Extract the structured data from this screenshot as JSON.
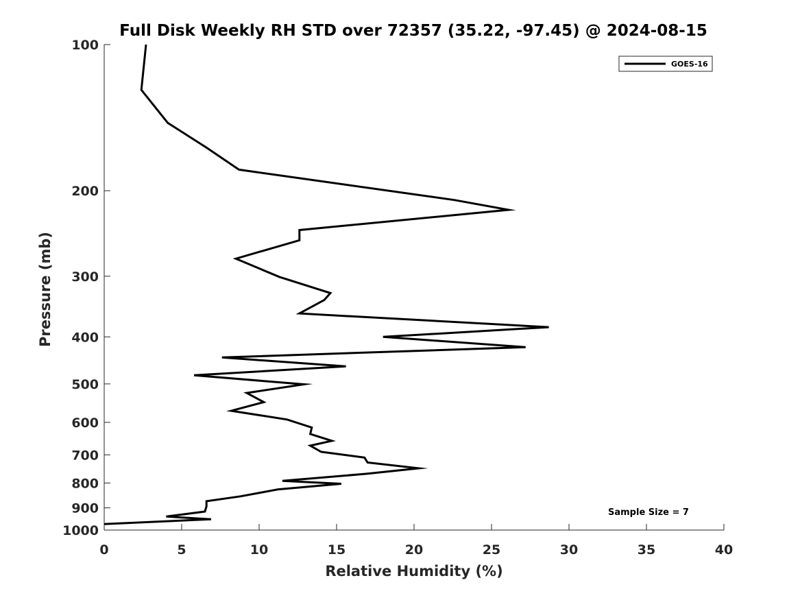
{
  "chart_data": {
    "type": "line",
    "title": "Full Disk Weekly RH STD over 72357 (35.22, -97.45) @ 2024-08-15",
    "xlabel": "Relative Humidity (%)",
    "ylabel": "Pressure (mb)",
    "xlim": [
      0,
      40
    ],
    "ylim": [
      100,
      1000
    ],
    "yscale": "log",
    "y_reversed": true,
    "grid": false,
    "x_ticks": [
      "0",
      "5",
      "10",
      "15",
      "20",
      "25",
      "30",
      "35",
      "40"
    ],
    "y_ticks": [
      "100",
      "200",
      "300",
      "400",
      "500",
      "600",
      "700",
      "800",
      "900",
      "1000"
    ],
    "legend": {
      "position": "top-right",
      "entries": [
        "GOES-16"
      ]
    },
    "annotation": "Sample Size = 7",
    "series": [
      {
        "name": "GOES-16",
        "color": "#000000",
        "points": [
          [
            2.7,
            100
          ],
          [
            2.4,
            124
          ],
          [
            4.1,
            145
          ],
          [
            6.6,
            163
          ],
          [
            8.7,
            181
          ],
          [
            22.6,
            209
          ],
          [
            26.1,
            219
          ],
          [
            12.6,
            241
          ],
          [
            12.6,
            253
          ],
          [
            8.5,
            276
          ],
          [
            11.3,
            301
          ],
          [
            14.6,
            325
          ],
          [
            14.2,
            336
          ],
          [
            12.6,
            358
          ],
          [
            28.7,
            382
          ],
          [
            18.0,
            400
          ],
          [
            27.2,
            420
          ],
          [
            7.6,
            441
          ],
          [
            15.6,
            460
          ],
          [
            5.8,
            480
          ],
          [
            12.9,
            501
          ],
          [
            9.2,
            522
          ],
          [
            10.3,
            545
          ],
          [
            8.2,
            568
          ],
          [
            11.8,
            592
          ],
          [
            13.4,
            615
          ],
          [
            13.3,
            634
          ],
          [
            14.7,
            655
          ],
          [
            13.3,
            670
          ],
          [
            14.0,
            690
          ],
          [
            16.8,
            709
          ],
          [
            17.0,
            726
          ],
          [
            20.3,
            746
          ],
          [
            16.9,
            766
          ],
          [
            11.5,
            792
          ],
          [
            15.3,
            803
          ],
          [
            11.2,
            825
          ],
          [
            8.8,
            852
          ],
          [
            6.6,
            872
          ],
          [
            6.6,
            894
          ],
          [
            6.5,
            916
          ],
          [
            4.0,
            938
          ],
          [
            6.9,
            950
          ],
          [
            0.0,
            972
          ]
        ]
      }
    ]
  }
}
